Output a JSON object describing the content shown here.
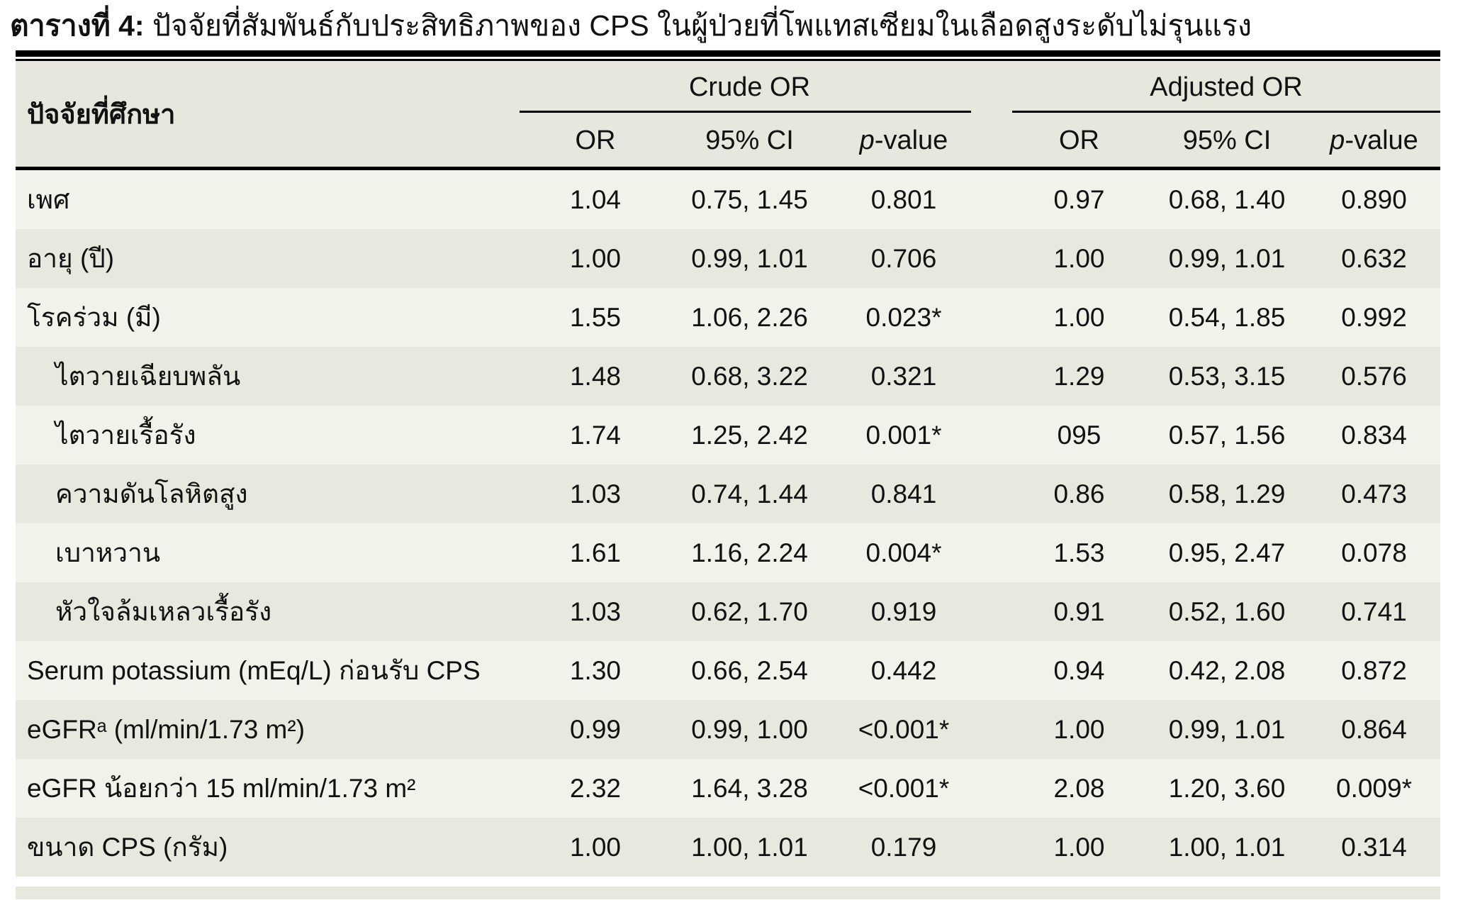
{
  "title": {
    "prefix": "ตารางที่ 4:",
    "text": " ปัจจัยที่สัมพันธ์กับประสิทธิภาพของ CPS ในผู้ป่วยที่โพแทสเซียมในเลือดสูงระดับไม่รุนแรง"
  },
  "table": {
    "factor_header": "ปัจจัยที่ศึกษา",
    "groups": {
      "crude": "Crude OR",
      "adjusted": "Adjusted OR"
    },
    "sub_headers": {
      "or": "OR",
      "ci": "95% CI",
      "p_italic": "p",
      "p_rest": "-value"
    },
    "rows": [
      {
        "label": "เพศ",
        "indent": false,
        "crude": {
          "or": "1.04",
          "ci": "0.75, 1.45",
          "p": "0.801"
        },
        "adjusted": {
          "or": "0.97",
          "ci": "0.68, 1.40",
          "p": "0.890"
        }
      },
      {
        "label": "อายุ (ปี)",
        "indent": false,
        "crude": {
          "or": "1.00",
          "ci": "0.99, 1.01",
          "p": "0.706"
        },
        "adjusted": {
          "or": "1.00",
          "ci": "0.99, 1.01",
          "p": "0.632"
        }
      },
      {
        "label": "โรคร่วม (มี)",
        "indent": false,
        "crude": {
          "or": "1.55",
          "ci": "1.06, 2.26",
          "p": "0.023*"
        },
        "adjusted": {
          "or": "1.00",
          "ci": "0.54, 1.85",
          "p": "0.992"
        }
      },
      {
        "label": "ไตวายเฉียบพลัน",
        "indent": true,
        "crude": {
          "or": "1.48",
          "ci": "0.68, 3.22",
          "p": "0.321"
        },
        "adjusted": {
          "or": "1.29",
          "ci": "0.53, 3.15",
          "p": "0.576"
        }
      },
      {
        "label": "ไตวายเรื้อรัง",
        "indent": true,
        "crude": {
          "or": "1.74",
          "ci": "1.25, 2.42",
          "p": "0.001*"
        },
        "adjusted": {
          "or": "095",
          "ci": "0.57, 1.56",
          "p": "0.834"
        }
      },
      {
        "label": "ความดันโลหิตสูง",
        "indent": true,
        "crude": {
          "or": "1.03",
          "ci": "0.74, 1.44",
          "p": "0.841"
        },
        "adjusted": {
          "or": "0.86",
          "ci": "0.58, 1.29",
          "p": "0.473"
        }
      },
      {
        "label": "เบาหวาน",
        "indent": true,
        "crude": {
          "or": "1.61",
          "ci": "1.16, 2.24",
          "p": "0.004*"
        },
        "adjusted": {
          "or": "1.53",
          "ci": "0.95, 2.47",
          "p": "0.078"
        }
      },
      {
        "label": "หัวใจล้มเหลวเรื้อรัง",
        "indent": true,
        "crude": {
          "or": "1.03",
          "ci": "0.62, 1.70",
          "p": "0.919"
        },
        "adjusted": {
          "or": "0.91",
          "ci": "0.52, 1.60",
          "p": "0.741"
        }
      },
      {
        "label": "Serum potassium (mEq/L) ก่อนรับ CPS",
        "indent": false,
        "crude": {
          "or": "1.30",
          "ci": "0.66, 2.54",
          "p": "0.442"
        },
        "adjusted": {
          "or": "0.94",
          "ci": "0.42, 2.08",
          "p": "0.872"
        }
      },
      {
        "label": "eGFRᵃ (ml/min/1.73 m²)",
        "indent": false,
        "crude": {
          "or": "0.99",
          "ci": "0.99, 1.00",
          "p": "<0.001*"
        },
        "adjusted": {
          "or": "1.00",
          "ci": "0.99, 1.01",
          "p": "0.864"
        }
      },
      {
        "label": "eGFR น้อยกว่า 15 ml/min/1.73 m²",
        "indent": false,
        "crude": {
          "or": "2.32",
          "ci": "1.64, 3.28",
          "p": "<0.001*"
        },
        "adjusted": {
          "or": "2.08",
          "ci": "1.20, 3.60",
          "p": "0.009*"
        }
      },
      {
        "label": "ขนาด CPS (กรัม)",
        "indent": false,
        "crude": {
          "or": "1.00",
          "ci": "1.00, 1.01",
          "p": "0.179"
        },
        "adjusted": {
          "or": "1.00",
          "ci": "1.00, 1.01",
          "p": "0.314"
        }
      }
    ]
  },
  "colors": {
    "row_light": "#f2f1ea",
    "row_dark": "#e9e8df",
    "header_bg": "#e8e7de",
    "rule": "#000000",
    "page_bg": "#ffffff"
  }
}
